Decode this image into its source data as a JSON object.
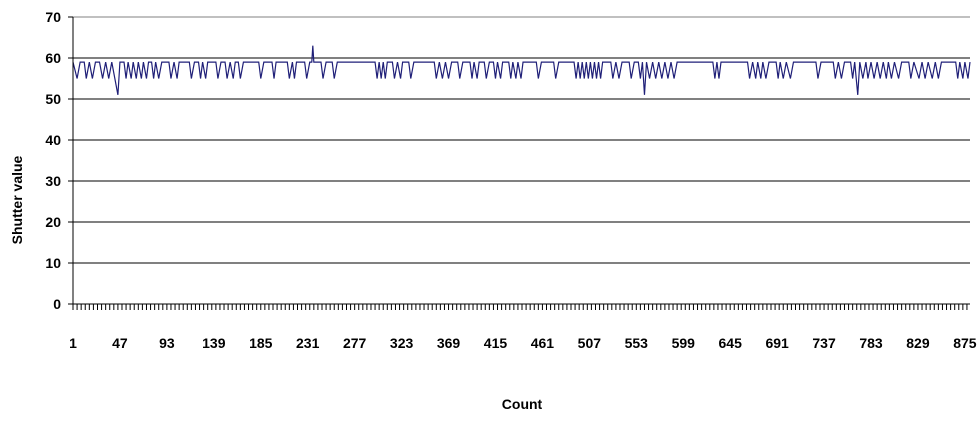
{
  "chart_data": {
    "type": "line",
    "title": "",
    "xlabel": "Count",
    "ylabel": "Shutter value",
    "xlim": [
      1,
      880
    ],
    "ylim": [
      0,
      70
    ],
    "y_ticks": [
      0,
      10,
      20,
      30,
      40,
      50,
      60,
      70
    ],
    "x_tick_labels": [
      "1",
      "47",
      "93",
      "139",
      "185",
      "231",
      "277",
      "323",
      "369",
      "415",
      "461",
      "507",
      "553",
      "599",
      "645",
      "691",
      "737",
      "783",
      "829",
      "875"
    ],
    "grid": "horizontal",
    "legend": "none",
    "series": [
      {
        "color": "#1f1f78",
        "baseline": 59,
        "points": [
          [
            1,
            59
          ],
          [
            5,
            55
          ],
          [
            8,
            59
          ],
          [
            12,
            59
          ],
          [
            14,
            55
          ],
          [
            17,
            59
          ],
          [
            20,
            55
          ],
          [
            23,
            59
          ],
          [
            27,
            59
          ],
          [
            30,
            55
          ],
          [
            33,
            59
          ],
          [
            36,
            55
          ],
          [
            39,
            59
          ],
          [
            42,
            55
          ],
          [
            45,
            51
          ],
          [
            47,
            59
          ],
          [
            51,
            59
          ],
          [
            53,
            55
          ],
          [
            55,
            59
          ],
          [
            58,
            55
          ],
          [
            60,
            59
          ],
          [
            63,
            55
          ],
          [
            65,
            59
          ],
          [
            68,
            55
          ],
          [
            70,
            59
          ],
          [
            73,
            55
          ],
          [
            75,
            59
          ],
          [
            78,
            59
          ],
          [
            80,
            55
          ],
          [
            82,
            59
          ],
          [
            85,
            55
          ],
          [
            88,
            59
          ],
          [
            95,
            59
          ],
          [
            97,
            55
          ],
          [
            100,
            59
          ],
          [
            103,
            55
          ],
          [
            105,
            59
          ],
          [
            115,
            59
          ],
          [
            117,
            55
          ],
          [
            120,
            59
          ],
          [
            124,
            59
          ],
          [
            126,
            55
          ],
          [
            128,
            59
          ],
          [
            131,
            55
          ],
          [
            133,
            59
          ],
          [
            141,
            59
          ],
          [
            143,
            55
          ],
          [
            146,
            59
          ],
          [
            150,
            59
          ],
          [
            152,
            55
          ],
          [
            155,
            59
          ],
          [
            158,
            55
          ],
          [
            160,
            59
          ],
          [
            163,
            59
          ],
          [
            165,
            55
          ],
          [
            168,
            59
          ],
          [
            183,
            59
          ],
          [
            185,
            55
          ],
          [
            188,
            59
          ],
          [
            196,
            59
          ],
          [
            198,
            55
          ],
          [
            200,
            59
          ],
          [
            211,
            59
          ],
          [
            213,
            55
          ],
          [
            216,
            59
          ],
          [
            218,
            55
          ],
          [
            220,
            59
          ],
          [
            228,
            59
          ],
          [
            230,
            55
          ],
          [
            233,
            59
          ],
          [
            235,
            59
          ],
          [
            236,
            63
          ],
          [
            237,
            59
          ],
          [
            244,
            59
          ],
          [
            246,
            55
          ],
          [
            249,
            59
          ],
          [
            255,
            59
          ],
          [
            257,
            55
          ],
          [
            260,
            59
          ],
          [
            297,
            59
          ],
          [
            299,
            55
          ],
          [
            301,
            59
          ],
          [
            303,
            55
          ],
          [
            305,
            59
          ],
          [
            307,
            55
          ],
          [
            309,
            59
          ],
          [
            314,
            59
          ],
          [
            316,
            55
          ],
          [
            319,
            59
          ],
          [
            322,
            55
          ],
          [
            324,
            59
          ],
          [
            330,
            59
          ],
          [
            332,
            55
          ],
          [
            335,
            59
          ],
          [
            355,
            59
          ],
          [
            357,
            55
          ],
          [
            360,
            59
          ],
          [
            363,
            55
          ],
          [
            366,
            59
          ],
          [
            369,
            55
          ],
          [
            372,
            59
          ],
          [
            378,
            59
          ],
          [
            380,
            55
          ],
          [
            383,
            59
          ],
          [
            390,
            59
          ],
          [
            392,
            55
          ],
          [
            394,
            59
          ],
          [
            397,
            55
          ],
          [
            399,
            59
          ],
          [
            404,
            59
          ],
          [
            406,
            55
          ],
          [
            409,
            59
          ],
          [
            413,
            59
          ],
          [
            415,
            55
          ],
          [
            417,
            59
          ],
          [
            420,
            55
          ],
          [
            422,
            59
          ],
          [
            428,
            59
          ],
          [
            430,
            55
          ],
          [
            432,
            59
          ],
          [
            435,
            55
          ],
          [
            437,
            59
          ],
          [
            440,
            55
          ],
          [
            442,
            59
          ],
          [
            455,
            59
          ],
          [
            457,
            55
          ],
          [
            460,
            59
          ],
          [
            472,
            59
          ],
          [
            474,
            55
          ],
          [
            477,
            59
          ],
          [
            492,
            59
          ],
          [
            494,
            55
          ],
          [
            496,
            59
          ],
          [
            498,
            55
          ],
          [
            500,
            59
          ],
          [
            502,
            55
          ],
          [
            504,
            59
          ],
          [
            506,
            55
          ],
          [
            508,
            59
          ],
          [
            510,
            55
          ],
          [
            512,
            59
          ],
          [
            514,
            55
          ],
          [
            516,
            59
          ],
          [
            518,
            55
          ],
          [
            520,
            59
          ],
          [
            528,
            59
          ],
          [
            530,
            55
          ],
          [
            533,
            59
          ],
          [
            536,
            55
          ],
          [
            539,
            59
          ],
          [
            546,
            59
          ],
          [
            548,
            55
          ],
          [
            551,
            59
          ],
          [
            555,
            59
          ],
          [
            557,
            55
          ],
          [
            559,
            59
          ],
          [
            561,
            51
          ],
          [
            563,
            59
          ],
          [
            566,
            55
          ],
          [
            569,
            59
          ],
          [
            572,
            55
          ],
          [
            575,
            59
          ],
          [
            578,
            55
          ],
          [
            581,
            59
          ],
          [
            584,
            55
          ],
          [
            587,
            59
          ],
          [
            590,
            55
          ],
          [
            593,
            59
          ],
          [
            628,
            59
          ],
          [
            630,
            55
          ],
          [
            632,
            59
          ],
          [
            634,
            55
          ],
          [
            636,
            59
          ],
          [
            662,
            59
          ],
          [
            664,
            55
          ],
          [
            667,
            59
          ],
          [
            670,
            55
          ],
          [
            672,
            59
          ],
          [
            675,
            55
          ],
          [
            677,
            59
          ],
          [
            680,
            55
          ],
          [
            683,
            59
          ],
          [
            690,
            59
          ],
          [
            692,
            55
          ],
          [
            694,
            59
          ],
          [
            697,
            55
          ],
          [
            700,
            59
          ],
          [
            704,
            55
          ],
          [
            707,
            59
          ],
          [
            729,
            59
          ],
          [
            731,
            55
          ],
          [
            734,
            59
          ],
          [
            746,
            59
          ],
          [
            748,
            55
          ],
          [
            751,
            59
          ],
          [
            754,
            55
          ],
          [
            757,
            59
          ],
          [
            763,
            59
          ],
          [
            765,
            55
          ],
          [
            767,
            59
          ],
          [
            770,
            51
          ],
          [
            772,
            59
          ],
          [
            775,
            55
          ],
          [
            778,
            59
          ],
          [
            780,
            55
          ],
          [
            783,
            59
          ],
          [
            786,
            55
          ],
          [
            789,
            59
          ],
          [
            792,
            55
          ],
          [
            795,
            59
          ],
          [
            798,
            55
          ],
          [
            800,
            59
          ],
          [
            803,
            55
          ],
          [
            806,
            59
          ],
          [
            810,
            55
          ],
          [
            813,
            59
          ],
          [
            820,
            59
          ],
          [
            822,
            55
          ],
          [
            825,
            59
          ],
          [
            830,
            55
          ],
          [
            833,
            59
          ],
          [
            836,
            55
          ],
          [
            839,
            59
          ],
          [
            843,
            55
          ],
          [
            846,
            59
          ],
          [
            849,
            55
          ],
          [
            852,
            59
          ],
          [
            866,
            59
          ],
          [
            868,
            55
          ],
          [
            870,
            59
          ],
          [
            873,
            55
          ],
          [
            875,
            59
          ],
          [
            878,
            55
          ],
          [
            880,
            59
          ]
        ]
      }
    ]
  }
}
